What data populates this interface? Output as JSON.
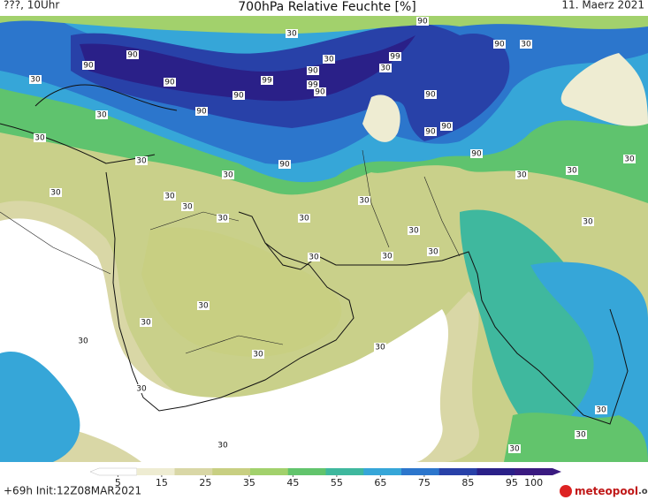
{
  "header": {
    "left": "???, 10Uhr",
    "title": "700hPa Relative Feuchte [%]",
    "date": "11. Maerz 2021"
  },
  "contour_labels": [
    90,
    90,
    90,
    90,
    90,
    99,
    90,
    99,
    90,
    90,
    99,
    90,
    90,
    90,
    90,
    90,
    90,
    30,
    30,
    30,
    30,
    30,
    30,
    30,
    30,
    30,
    30,
    30,
    30,
    30,
    30,
    30,
    30,
    30,
    30,
    30,
    30,
    30,
    30,
    30,
    30,
    30,
    30,
    30,
    30,
    30,
    30,
    30,
    30,
    30
  ],
  "colorbar": {
    "ticks": [
      5,
      15,
      25,
      35,
      45,
      55,
      65,
      75,
      85,
      95,
      100
    ],
    "colors": [
      "#ffffff",
      "#eeecd2",
      "#d9d7a6",
      "#c8cf82",
      "#a2d16c",
      "#62c46c",
      "#3fb89e",
      "#36a6d8",
      "#2c76cc",
      "#2841a8",
      "#2a2088",
      "#3a1a80"
    ]
  },
  "footer": {
    "run": "+69h Init:12Z08MAR2021",
    "logo": "meteopool",
    "logo_suffix": ".org"
  }
}
